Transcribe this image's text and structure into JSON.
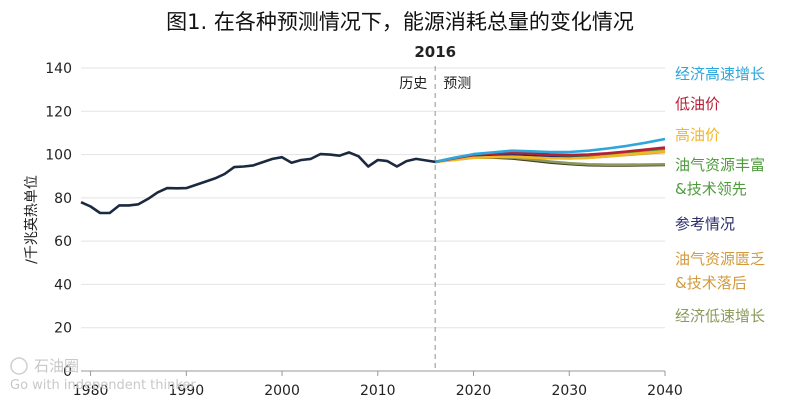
{
  "chart_data": {
    "type": "line",
    "title": "图1. 在各种预测情况下，能源消耗总量的变化情况",
    "ylabel": "/千兆英热单位",
    "xlabel": "",
    "xlim": [
      1979,
      2040
    ],
    "ylim": [
      0,
      140
    ],
    "x_ticks": [
      "1980",
      "1990",
      "2000",
      "2010",
      "2020",
      "2030",
      "2040"
    ],
    "y_ticks": [
      "0",
      "20",
      "40",
      "60",
      "80",
      "100",
      "120",
      "140"
    ],
    "grid": "horizontal",
    "divider_year": "2016",
    "history_label": "历史",
    "projection_label": "预测",
    "history": {
      "x": [
        1979,
        1980,
        1981,
        1982,
        1983,
        1984,
        1985,
        1986,
        1987,
        1988,
        1989,
        1990,
        1991,
        1992,
        1993,
        1994,
        1995,
        1996,
        1997,
        1998,
        1999,
        2000,
        2001,
        2002,
        2003,
        2004,
        2005,
        2006,
        2007,
        2008,
        2009,
        2010,
        2011,
        2012,
        2013,
        2014,
        2015,
        2016
      ],
      "values": [
        78.0,
        76.0,
        73.0,
        73.0,
        76.5,
        76.5,
        77.0,
        79.5,
        82.5,
        84.5,
        84.4,
        84.5,
        86.0,
        87.5,
        89.0,
        91.0,
        94.2,
        94.5,
        95.0,
        96.5,
        98.0,
        98.8,
        96.2,
        97.5,
        98.0,
        100.2,
        100.0,
        99.5,
        101.0,
        99.2,
        94.5,
        97.5,
        97.0,
        94.5,
        97.0,
        98.0,
        97.3,
        96.6
      ],
      "color": "#1b2a41"
    },
    "projection_x": [
      2016,
      2018,
      2020,
      2022,
      2024,
      2026,
      2028,
      2030,
      2032,
      2034,
      2036,
      2038,
      2040
    ],
    "series": [
      {
        "name": "经济高速增长",
        "color": "#2ea6dc",
        "values": [
          96.6,
          98.5,
          100.2,
          101.0,
          101.8,
          101.5,
          101.2,
          101.2,
          101.8,
          102.8,
          104.0,
          105.5,
          107.2
        ]
      },
      {
        "name": "低油价",
        "color": "#b61f34",
        "values": [
          96.6,
          98.3,
          99.8,
          100.4,
          100.8,
          100.5,
          100.0,
          99.8,
          100.0,
          100.6,
          101.4,
          102.3,
          103.2
        ]
      },
      {
        "name": "高油价",
        "color": "#f2b824",
        "values": [
          96.6,
          97.5,
          98.5,
          98.8,
          99.0,
          98.6,
          98.3,
          98.2,
          98.5,
          99.2,
          100.0,
          100.8,
          101.5
        ]
      },
      {
        "name": "油气资源丰富&技术领先",
        "color": "#4e9a3c",
        "values": [
          96.6,
          98.5,
          100.0,
          100.6,
          100.9,
          100.5,
          100.0,
          99.7,
          99.8,
          100.3,
          101.0,
          101.8,
          102.6
        ]
      },
      {
        "name": "参考情况",
        "color": "#2b2f6b",
        "values": [
          96.6,
          98.2,
          99.5,
          100.0,
          100.2,
          99.8,
          99.4,
          99.2,
          99.4,
          99.9,
          100.5,
          101.1,
          101.8
        ]
      },
      {
        "name": "油气资源匮乏&技术落后",
        "color": "#d29a3c",
        "values": [
          96.6,
          97.8,
          98.8,
          99.2,
          99.4,
          98.9,
          98.5,
          98.3,
          98.5,
          99.1,
          99.8,
          100.5,
          101.2
        ]
      },
      {
        "name": "经济低速增长",
        "color": "#8a9a5b",
        "values": [
          96.6,
          97.9,
          98.8,
          98.9,
          98.6,
          97.8,
          96.8,
          96.0,
          95.5,
          95.3,
          95.3,
          95.4,
          95.5
        ]
      },
      {
        "name": "",
        "color": "#4a3a1c",
        "values": [
          96.6,
          97.8,
          98.6,
          98.6,
          98.2,
          97.3,
          96.3,
          95.6,
          95.1,
          95.0,
          95.0,
          95.1,
          95.2
        ]
      }
    ]
  },
  "legend": [
    {
      "lines": [
        "经济高速增长"
      ],
      "color": "#2ea6dc"
    },
    {
      "lines": [
        "低油价"
      ],
      "color": "#b61f34"
    },
    {
      "lines": [
        "高油价"
      ],
      "color": "#f2b824"
    },
    {
      "lines": [
        "油气资源丰富",
        "&技术领先"
      ],
      "color": "#4e9a3c"
    },
    {
      "lines": [
        "参考情况"
      ],
      "color": "#2b2f6b"
    },
    {
      "lines": [
        "油气资源匮乏",
        "&技术落后"
      ],
      "color": "#d29a3c"
    },
    {
      "lines": [
        "经济低速增长"
      ],
      "color": "#8a9a5b"
    }
  ],
  "watermark": {
    "text1": "石油圈",
    "text2": "Go with independent thinker"
  }
}
